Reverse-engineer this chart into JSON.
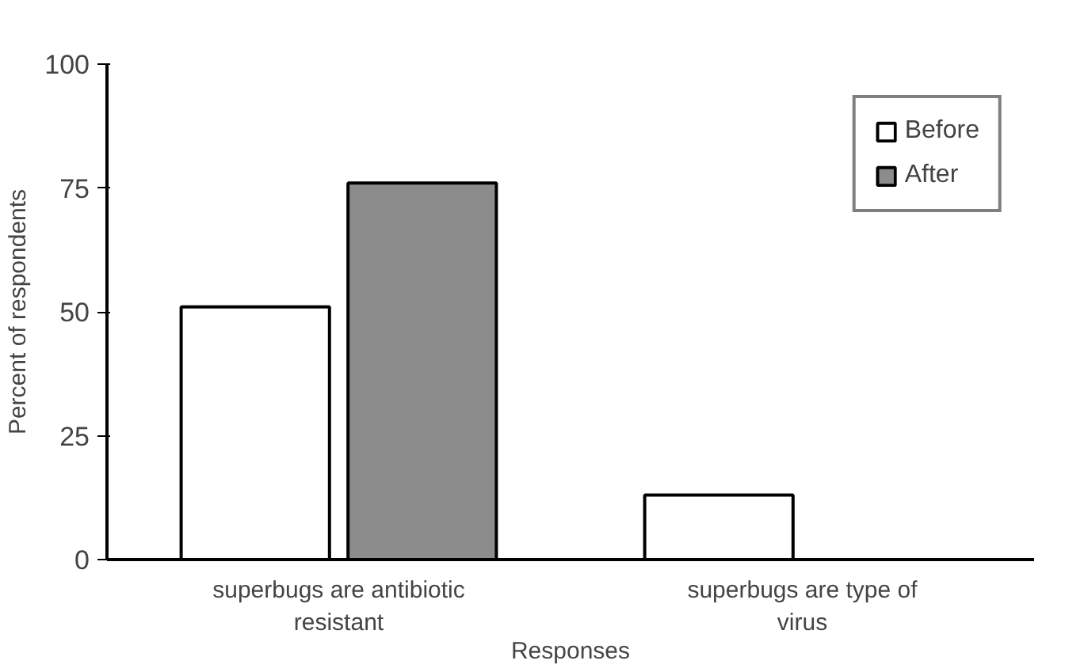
{
  "chart_data": {
    "type": "bar",
    "xlabel": "Responses",
    "ylabel": "Percent of respondents",
    "categories": [
      "superbugs are antibiotic\nresistant",
      "superbugs are type of\nvirus"
    ],
    "series": [
      {
        "name": "Before",
        "color": "#ffffff",
        "values": [
          51,
          13
        ]
      },
      {
        "name": "After",
        "color": "#8c8c8c",
        "values": [
          76,
          null
        ]
      }
    ],
    "ylim": [
      0,
      100
    ],
    "yticks": [
      0,
      25,
      50,
      75,
      100
    ],
    "grid": false,
    "legend": "top right"
  }
}
